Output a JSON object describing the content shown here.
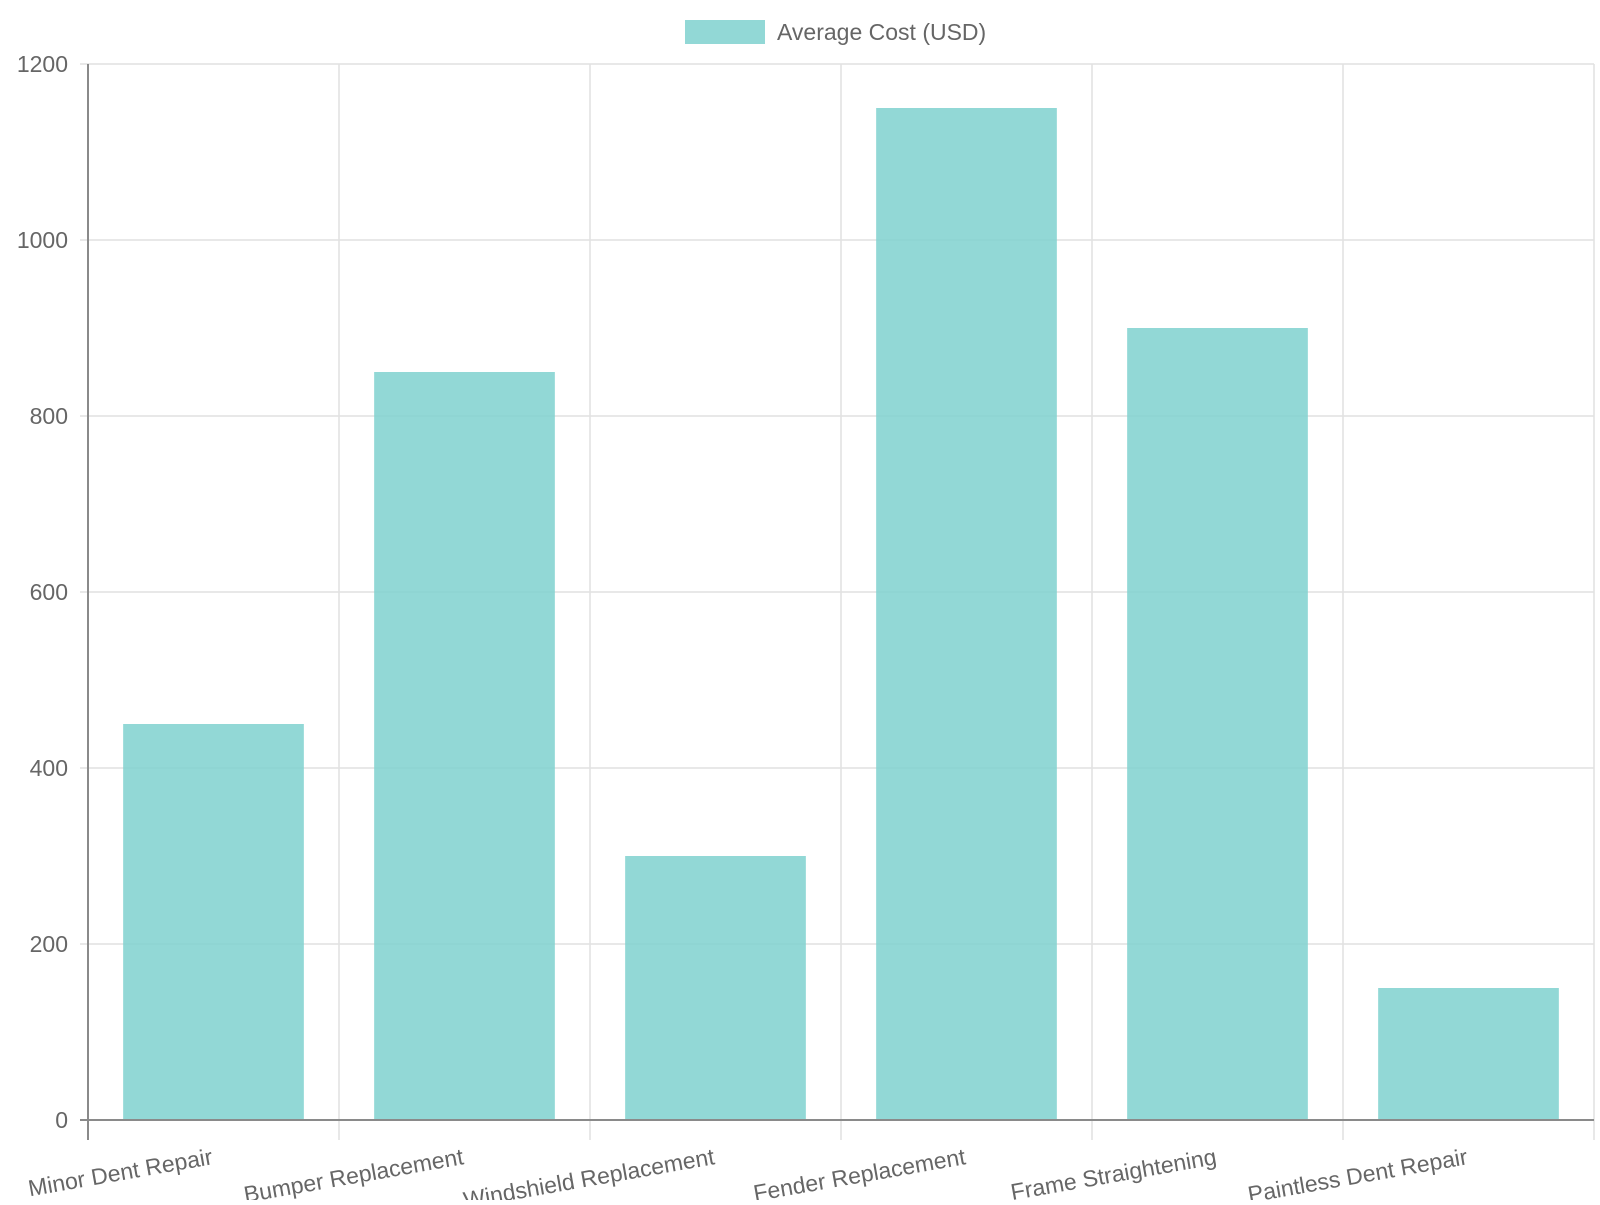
{
  "chart_data": {
    "type": "bar",
    "title": "",
    "xlabel": "",
    "ylabel": "",
    "categories": [
      "Minor Dent Repair",
      "Bumper Replacement",
      "Windshield Replacement",
      "Fender Replacement",
      "Frame Straightening",
      "Paintless Dent Repair"
    ],
    "series": [
      {
        "name": "Average Cost (USD)",
        "values": [
          450,
          850,
          300,
          1150,
          900,
          150
        ],
        "color": "#7fd1cf"
      }
    ],
    "ylim": [
      0,
      1200
    ],
    "yticks": [
      0,
      200,
      400,
      600,
      800,
      1000,
      1200
    ],
    "ytick_labels": [
      "0",
      "200",
      "400",
      "600",
      "800",
      "1000",
      "1200"
    ],
    "grid": true,
    "legend": "top-center"
  }
}
